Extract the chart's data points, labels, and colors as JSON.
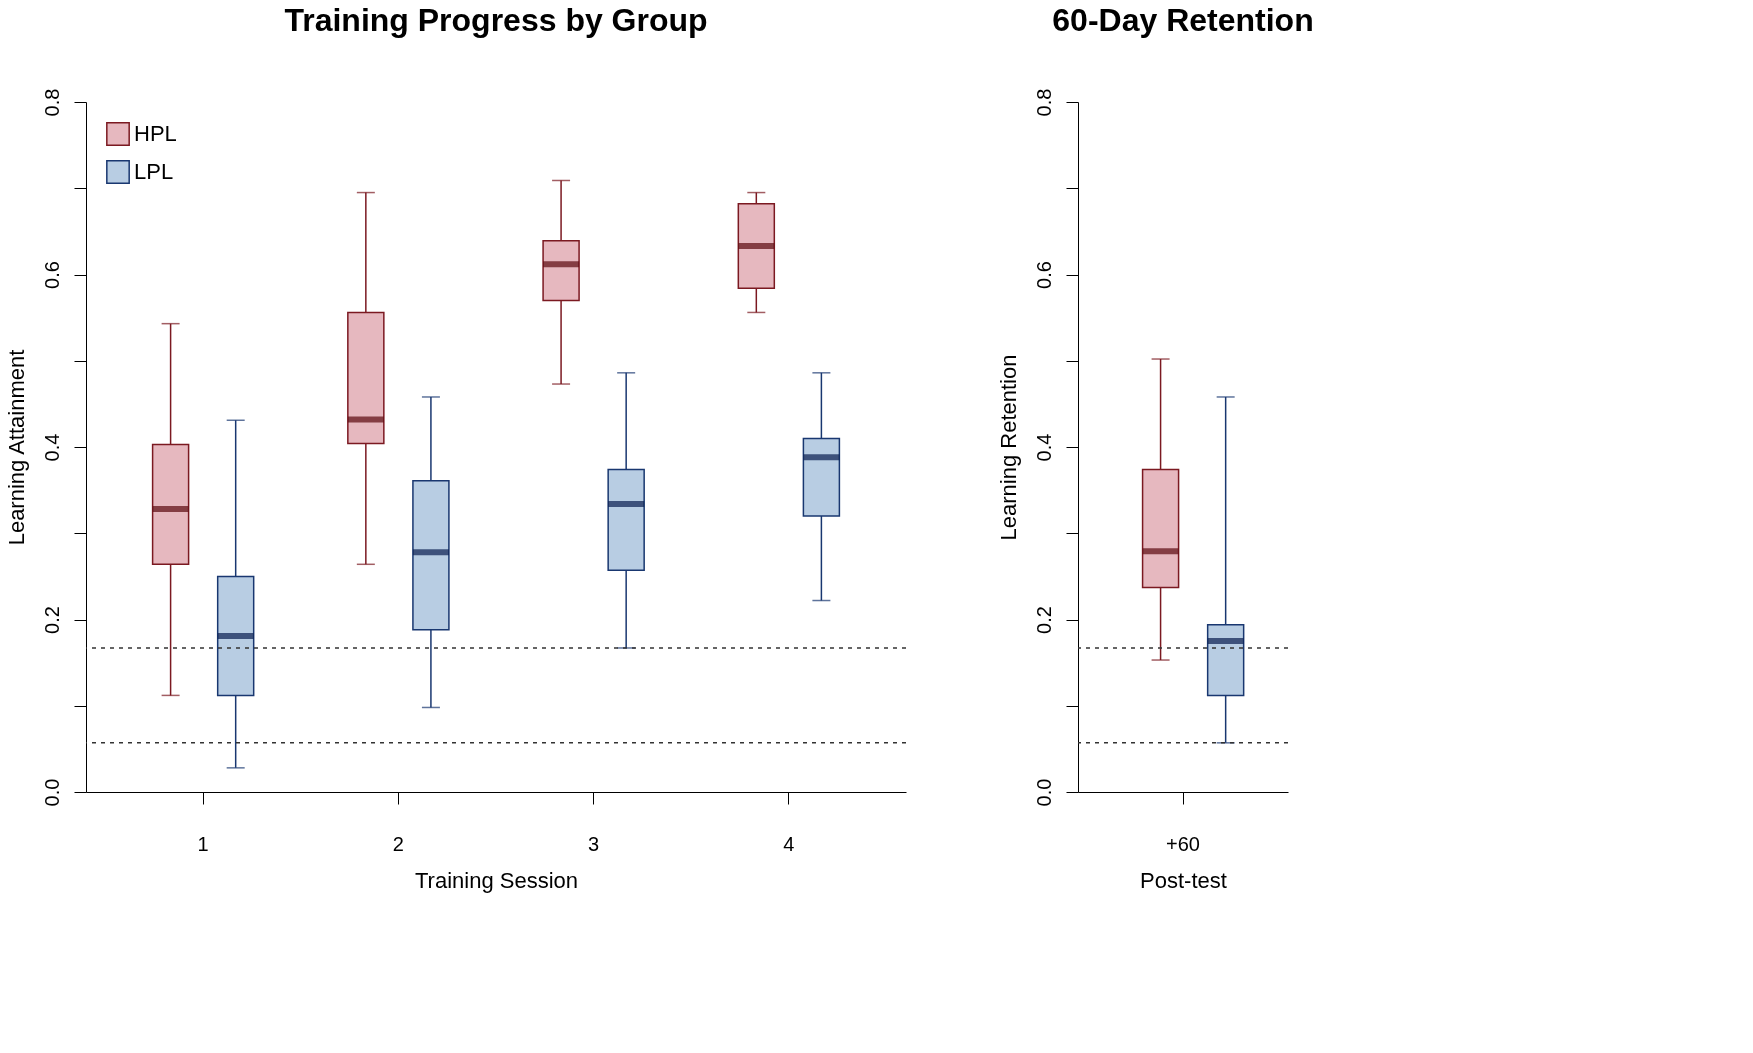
{
  "chart_data": [
    {
      "type": "box",
      "title": "Training Progress by Group",
      "xlabel": "Training Session",
      "ylabel": "Learning Attainment",
      "categories": [
        "1",
        "2",
        "3",
        "4"
      ],
      "ylim": [
        0,
        0.8
      ],
      "yticks": [
        {
          "value": 0,
          "label": "0.0"
        },
        {
          "value": 0.1,
          "label": null
        },
        0.2,
        {
          "value": 0.3,
          "label": null
        },
        0.4,
        {
          "value": 0.5,
          "label": null
        },
        0.6,
        {
          "value": 0.7,
          "label": null
        },
        0.8
      ],
      "grid": false,
      "legend": "top left",
      "series": [
        {
          "name": "HPL",
          "color": "#e6b8bf",
          "boxes": [
            {
              "low": 0.112,
              "q1": 0.264,
              "median": 0.328,
              "q3": 0.403,
              "high": 0.543
            },
            {
              "low": 0.264,
              "q1": 0.404,
              "median": 0.432,
              "q3": 0.556,
              "high": 0.695
            },
            {
              "low": 0.473,
              "q1": 0.57,
              "median": 0.612,
              "q3": 0.639,
              "high": 0.709
            },
            {
              "low": 0.556,
              "q1": 0.584,
              "median": 0.633,
              "q3": 0.682,
              "high": 0.695
            }
          ]
        },
        {
          "name": "LPL",
          "color": "#b8cde3",
          "boxes": [
            {
              "low": 0.028,
              "q1": 0.112,
              "median": 0.181,
              "q3": 0.25,
              "high": 0.431
            },
            {
              "low": 0.098,
              "q1": 0.188,
              "median": 0.278,
              "q3": 0.361,
              "high": 0.458
            },
            {
              "low": 0.167,
              "q1": 0.257,
              "median": 0.334,
              "q3": 0.374,
              "high": 0.486
            },
            {
              "low": 0.222,
              "q1": 0.32,
              "median": 0.388,
              "q3": 0.41,
              "high": 0.486
            }
          ]
        }
      ],
      "ref_lines": [
        {
          "axis": "y",
          "value": 0.167,
          "line_style": "dashed",
          "color": "#333333"
        },
        {
          "axis": "y",
          "value": 0.057,
          "line_style": "dashed",
          "color": "#333333"
        }
      ]
    },
    {
      "type": "box",
      "title": "60-Day Retention",
      "xlabel": "Post-test",
      "ylabel": "Learning Retention",
      "categories": [
        "+60"
      ],
      "ylim": [
        0,
        0.8
      ],
      "yticks": [
        {
          "value": 0,
          "label": "0.0"
        },
        {
          "value": 0.1,
          "label": null
        },
        0.2,
        {
          "value": 0.3,
          "label": null
        },
        0.4,
        {
          "value": 0.5,
          "label": null
        },
        0.6,
        {
          "value": 0.7,
          "label": null
        },
        0.8
      ],
      "grid": false,
      "legend": false,
      "series": [
        {
          "color": "#e6b8bf",
          "boxes": [
            {
              "low": 0.153,
              "q1": 0.237,
              "median": 0.279,
              "q3": 0.374,
              "high": 0.502
            }
          ]
        },
        {
          "color": "#b8cde3",
          "boxes": [
            {
              "low": 0.057,
              "q1": 0.112,
              "median": 0.175,
              "q3": 0.194,
              "high": 0.458
            }
          ]
        }
      ],
      "ref_lines": [
        {
          "axis": "y",
          "value": 0.167,
          "line_style": "dashed",
          "color": "#333333"
        },
        {
          "axis": "y",
          "value": 0.057,
          "line_style": "dashed",
          "color": "#333333"
        }
      ]
    }
  ]
}
